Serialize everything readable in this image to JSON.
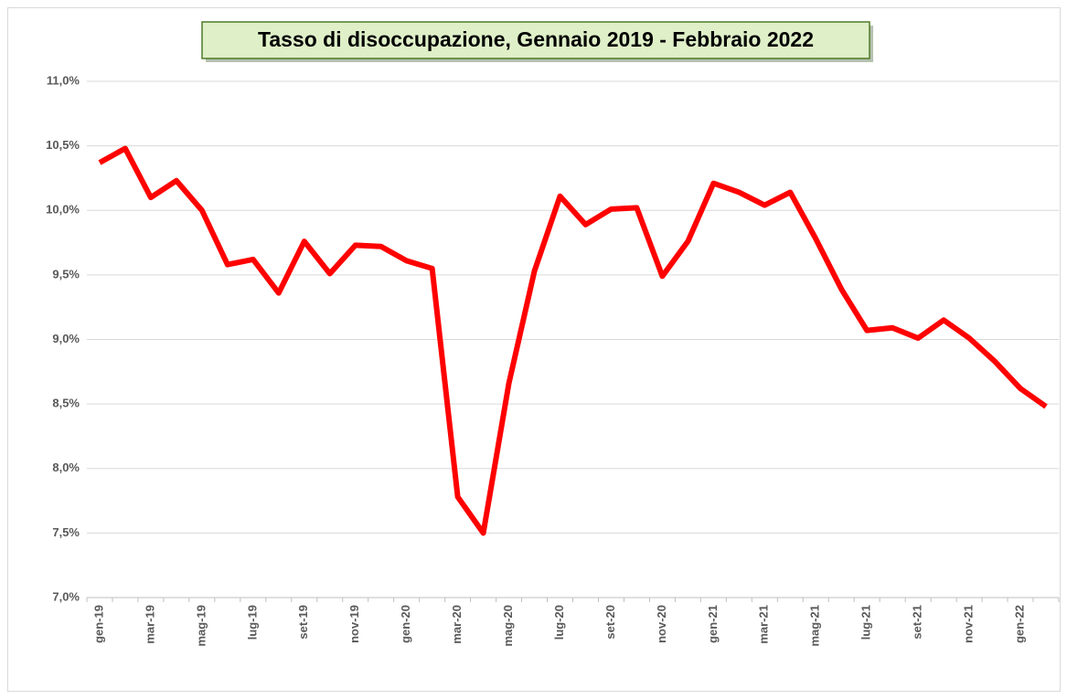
{
  "chart_data": {
    "type": "line",
    "title": "Tasso di disoccupazione, Gennaio 2019 - Febbraio 2022",
    "categories": [
      "gen-19",
      null,
      "mar-19",
      null,
      "mag-19",
      null,
      "lug-19",
      null,
      "set-19",
      null,
      "nov-19",
      null,
      "gen-20",
      null,
      "mar-20",
      null,
      "mag-20",
      null,
      "lug-20",
      null,
      "set-20",
      null,
      "nov-20",
      null,
      "gen-21",
      null,
      "mar-21",
      null,
      "mag-21",
      null,
      "lug-21",
      null,
      "set-21",
      null,
      "nov-21",
      null,
      "gen-22",
      null
    ],
    "series": [
      {
        "color": "#ff0000",
        "values": [
          10.37,
          10.48,
          10.1,
          10.23,
          10.0,
          9.58,
          9.62,
          9.36,
          9.76,
          9.51,
          9.73,
          9.72,
          9.61,
          9.55,
          7.78,
          7.5,
          8.66,
          9.53,
          10.11,
          9.89,
          10.01,
          10.02,
          9.49,
          9.76,
          10.21,
          10.14,
          10.04,
          10.14,
          9.78,
          9.39,
          9.07,
          9.09,
          9.01,
          9.15,
          9.01,
          8.83,
          8.62,
          8.48
        ]
      }
    ],
    "ylim": [
      7,
      11
    ],
    "yticks": [
      {
        "value": 7,
        "label": "7,0%"
      },
      {
        "value": 7.5,
        "label": "7,5%"
      },
      {
        "value": 8,
        "label": "8,0%"
      },
      {
        "value": 8.5,
        "label": "8,5%"
      },
      {
        "value": 9,
        "label": "9,0%"
      },
      {
        "value": 9.5,
        "label": "9,5%"
      },
      {
        "value": 10,
        "label": "10,0%"
      },
      {
        "value": 10.5,
        "label": "10,5%"
      },
      {
        "value": 11,
        "label": "11,0%"
      }
    ],
    "grid": true
  }
}
